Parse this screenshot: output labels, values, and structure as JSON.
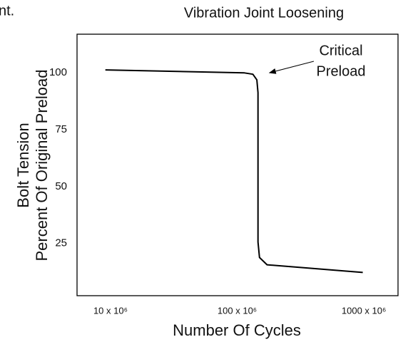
{
  "fragment": "nt.",
  "chart_data": {
    "type": "line",
    "title": "Vibration Joint Loosening",
    "xlabel": "Number Of Cycles",
    "ylabel": [
      "Bolt Tension",
      "Percent Of Original Preload"
    ],
    "x": [
      9100000,
      114000000,
      133000000,
      143000000,
      146000000,
      146000000,
      150000000,
      172000000,
      980000000
    ],
    "values": [
      101.3,
      100,
      99.4,
      96.9,
      91.3,
      25.6,
      18.8,
      15.6,
      12.2
    ],
    "color": "#000000",
    "xlog": true,
    "xlim": [
      5440000,
      1860000000
    ],
    "xticks": [
      {
        "value": 10000000,
        "label": "10 x 10⁶"
      },
      {
        "value": 100000000,
        "label": "100 x 10⁶"
      },
      {
        "value": 1000000000,
        "label": "1000 x 10⁶"
      }
    ],
    "ylim": [
      2,
      117
    ],
    "yticks": [
      25,
      50,
      75,
      100
    ],
    "grid": false,
    "annotation": {
      "lines": [
        "Critical",
        "Preload"
      ],
      "x": 146000000,
      "y": 99.4
    }
  }
}
